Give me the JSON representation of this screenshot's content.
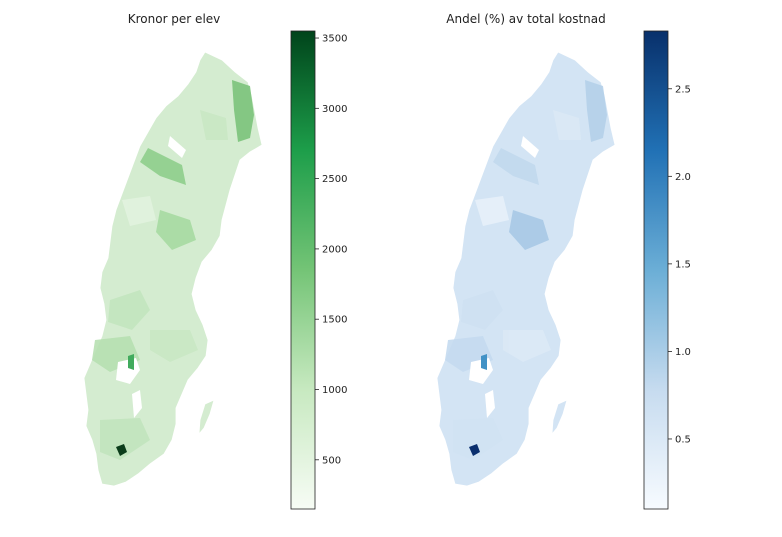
{
  "maps": [
    {
      "title": "Kronor per elev",
      "colormap": "greens",
      "colors": {
        "low": "#f5fbf3",
        "mid": "#41ab5d",
        "high": "#00441b",
        "highlight": "#0b3d1a"
      },
      "colorbar": {
        "range": [
          150,
          3550
        ],
        "ticks": [
          500,
          1000,
          1500,
          2000,
          2500,
          3000,
          3500
        ]
      }
    },
    {
      "title": "Andel (%) av total kostnad",
      "colormap": "blues",
      "colors": {
        "low": "#f4f8fd",
        "mid": "#4292c6",
        "high": "#08306b",
        "highlight": "#0a2f6e"
      },
      "colorbar": {
        "range": [
          0.1,
          2.83
        ],
        "ticks": [
          0.5,
          1.0,
          1.5,
          2.0,
          2.5
        ]
      }
    }
  ]
}
